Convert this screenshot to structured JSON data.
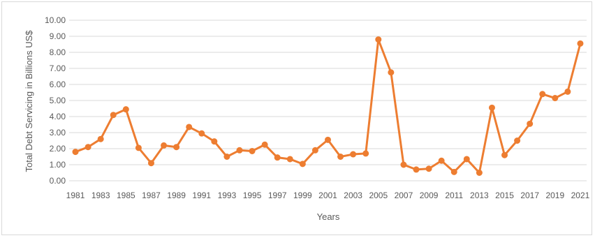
{
  "colors": {
    "series": "#ED7D31",
    "grid": "#D9D9D9",
    "text": "#595959"
  },
  "chart_data": {
    "type": "line",
    "title": "",
    "xlabel": "Years",
    "ylabel": "Total Debt Servicing  in Billions US$",
    "ylim": [
      0,
      10
    ],
    "y_ticks": [
      "0.00",
      "1.00",
      "2.00",
      "3.00",
      "4.00",
      "5.00",
      "6.00",
      "7.00",
      "8.00",
      "9.00",
      "10.00"
    ],
    "x_tick_labels": [
      "1981",
      "1983",
      "1985",
      "1987",
      "1989",
      "1991",
      "1993",
      "1995",
      "1997",
      "1999",
      "2001",
      "2003",
      "2005",
      "2007",
      "2009",
      "2011",
      "2013",
      "2015",
      "2017",
      "2019",
      "2021"
    ],
    "grid": true,
    "legend": "none",
    "x": [
      1981,
      1982,
      1983,
      1984,
      1985,
      1986,
      1987,
      1988,
      1989,
      1990,
      1991,
      1992,
      1993,
      1994,
      1995,
      1996,
      1997,
      1998,
      1999,
      2000,
      2001,
      2002,
      2003,
      2004,
      2005,
      2006,
      2007,
      2008,
      2009,
      2010,
      2011,
      2012,
      2013,
      2014,
      2015,
      2016,
      2017,
      2018,
      2019,
      2020,
      2021
    ],
    "series": [
      {
        "values": [
          1.8,
          2.1,
          2.6,
          4.1,
          4.45,
          2.05,
          1.1,
          2.2,
          2.1,
          3.35,
          2.95,
          2.45,
          1.5,
          1.9,
          1.85,
          2.25,
          1.45,
          1.35,
          1.05,
          1.9,
          2.55,
          1.5,
          1.65,
          1.7,
          8.8,
          6.75,
          1.0,
          0.7,
          0.75,
          1.25,
          0.55,
          1.35,
          0.5,
          4.55,
          1.6,
          2.5,
          3.55,
          5.4,
          5.15,
          5.55,
          8.55
        ]
      }
    ]
  }
}
